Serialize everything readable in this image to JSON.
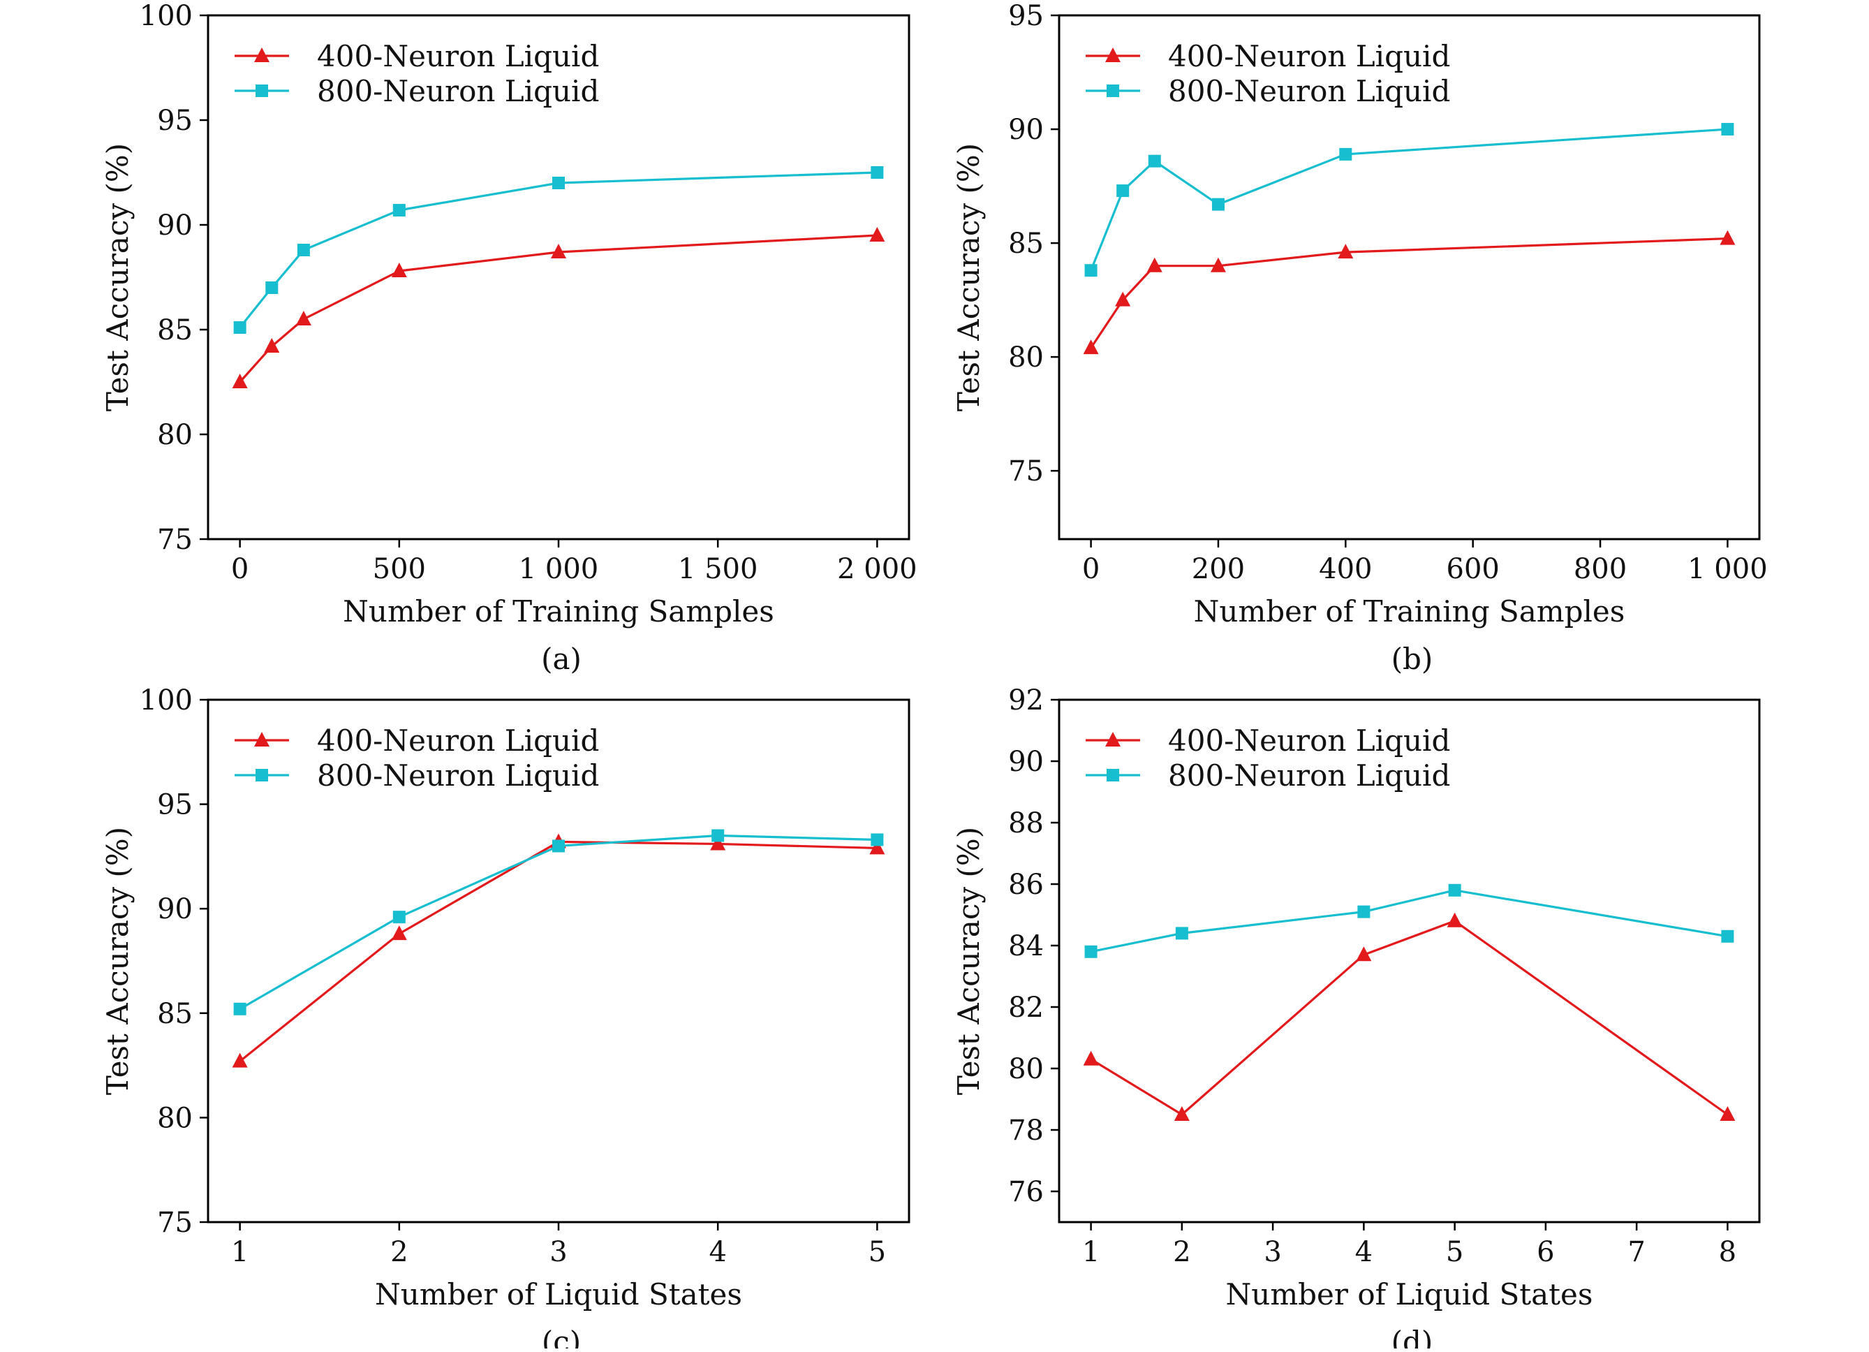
{
  "colors": {
    "series400": "#e31a1c",
    "series800": "#17becf",
    "axis": "#000000"
  },
  "chart_data": [
    {
      "id": "a",
      "type": "line",
      "caption": "(a)",
      "xlabel": "Number of Training Samples",
      "ylabel": "Test Accuracy (%)",
      "xlim": [
        -100,
        2100
      ],
      "ylim": [
        75,
        100
      ],
      "xticks": [
        0,
        500,
        1000,
        1500,
        2000
      ],
      "xtick_labels": [
        "0",
        "500",
        "1 000",
        "1 500",
        "2 000"
      ],
      "yticks": [
        75,
        80,
        85,
        90,
        95,
        100
      ],
      "ytick_labels": [
        "75",
        "80",
        "85",
        "90",
        "95",
        "100"
      ],
      "legend_position": "top-left",
      "series": [
        {
          "name": "400-Neuron Liquid",
          "marker": "triangle",
          "color": "#e31a1c",
          "x": [
            0,
            100,
            200,
            500,
            1000,
            2000
          ],
          "y": [
            82.5,
            84.2,
            85.5,
            87.8,
            88.7,
            89.5
          ]
        },
        {
          "name": "800-Neuron Liquid",
          "marker": "square",
          "color": "#17becf",
          "x": [
            0,
            100,
            200,
            500,
            1000,
            2000
          ],
          "y": [
            85.1,
            87.0,
            88.8,
            90.7,
            92.0,
            92.5
          ]
        }
      ]
    },
    {
      "id": "b",
      "type": "line",
      "caption": "(b)",
      "xlabel": "Number of Training Samples",
      "ylabel": "Test Accuracy (%)",
      "xlim": [
        -50,
        1050
      ],
      "ylim": [
        72,
        95
      ],
      "xticks": [
        0,
        200,
        400,
        600,
        800,
        1000
      ],
      "xtick_labels": [
        "0",
        "200",
        "400",
        "600",
        "800",
        "1 000"
      ],
      "yticks": [
        75,
        80,
        85,
        90,
        95
      ],
      "ytick_labels": [
        "75",
        "80",
        "85",
        "90",
        "95"
      ],
      "legend_position": "top-left",
      "series": [
        {
          "name": "400-Neuron Liquid",
          "marker": "triangle",
          "color": "#e31a1c",
          "x": [
            0,
            50,
            100,
            200,
            400,
            1000
          ],
          "y": [
            80.4,
            82.5,
            84.0,
            84.0,
            84.6,
            85.2
          ]
        },
        {
          "name": "800-Neuron Liquid",
          "marker": "square",
          "color": "#17becf",
          "x": [
            0,
            50,
            100,
            200,
            400,
            1000
          ],
          "y": [
            83.8,
            87.3,
            88.6,
            86.7,
            88.9,
            90.0
          ]
        }
      ]
    },
    {
      "id": "c",
      "type": "line",
      "caption": "(c)",
      "xlabel": "Number of Liquid States",
      "ylabel": "Test Accuracy (%)",
      "xlim": [
        0.8,
        5.2
      ],
      "ylim": [
        75,
        100
      ],
      "xticks": [
        1,
        2,
        3,
        4,
        5
      ],
      "xtick_labels": [
        "1",
        "2",
        "3",
        "4",
        "5"
      ],
      "yticks": [
        75,
        80,
        85,
        90,
        95,
        100
      ],
      "ytick_labels": [
        "75",
        "80",
        "85",
        "90",
        "95",
        "100"
      ],
      "legend_position": "top-left",
      "series": [
        {
          "name": "400-Neuron Liquid",
          "marker": "triangle",
          "color": "#e31a1c",
          "x": [
            1,
            2,
            3,
            4,
            5
          ],
          "y": [
            82.7,
            88.8,
            93.2,
            93.1,
            92.9
          ]
        },
        {
          "name": "800-Neuron Liquid",
          "marker": "square",
          "color": "#17becf",
          "x": [
            1,
            2,
            3,
            4,
            5
          ],
          "y": [
            85.2,
            89.6,
            93.0,
            93.5,
            93.3
          ]
        }
      ]
    },
    {
      "id": "d",
      "type": "line",
      "caption": "(d)",
      "xlabel": "Number of Liquid States",
      "ylabel": "Test Accuracy (%)",
      "xlim": [
        0.65,
        8.35
      ],
      "ylim": [
        75,
        92
      ],
      "xticks": [
        1,
        2,
        3,
        4,
        5,
        6,
        7,
        8
      ],
      "xtick_labels": [
        "1",
        "2",
        "3",
        "4",
        "5",
        "6",
        "7",
        "8"
      ],
      "yticks": [
        76,
        78,
        80,
        82,
        84,
        86,
        88,
        90,
        92
      ],
      "ytick_labels": [
        "76",
        "78",
        "80",
        "82",
        "84",
        "86",
        "88",
        "90",
        "92"
      ],
      "legend_position": "top-left",
      "series": [
        {
          "name": "400-Neuron Liquid",
          "marker": "triangle",
          "color": "#e31a1c",
          "x": [
            1,
            2,
            4,
            5,
            8
          ],
          "y": [
            80.3,
            78.5,
            83.7,
            84.8,
            78.5
          ]
        },
        {
          "name": "800-Neuron Liquid",
          "marker": "square",
          "color": "#17becf",
          "x": [
            1,
            2,
            4,
            5,
            8
          ],
          "y": [
            83.8,
            84.4,
            85.1,
            85.8,
            84.3
          ]
        }
      ]
    }
  ]
}
